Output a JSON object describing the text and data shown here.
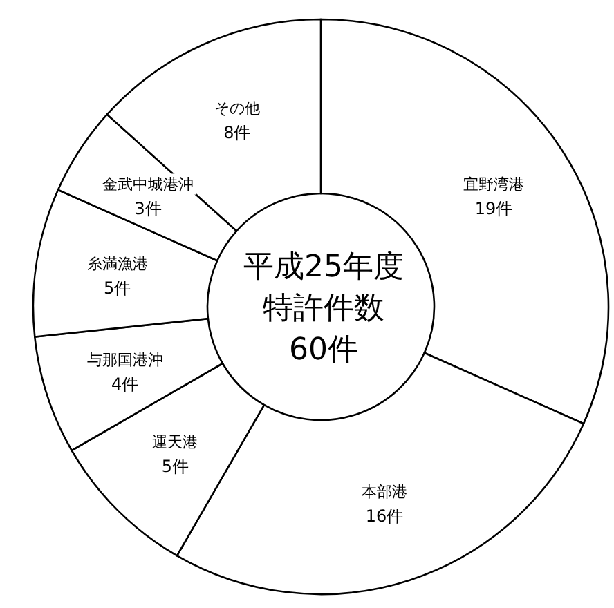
{
  "chart_data": {
    "type": "donut",
    "title": "平成25年度",
    "subtitle": "特許件数",
    "annotations": [
      "60件"
    ],
    "categories": [
      "宜野湾港",
      "本部港",
      "運天港",
      "与那国港沖",
      "糸満漁港",
      "金武中城港沖",
      "その他"
    ],
    "values": [
      19,
      16,
      5,
      4,
      5,
      3,
      8
    ],
    "value_labels": [
      "19件",
      "16件",
      "5件",
      "4件",
      "5件",
      "3件",
      "8件"
    ],
    "colors": [
      "#ffffff",
      "#ffffff",
      "#ffffff",
      "#ffffff",
      "#ffffff",
      "#ffffff",
      "#ffffff"
    ]
  }
}
